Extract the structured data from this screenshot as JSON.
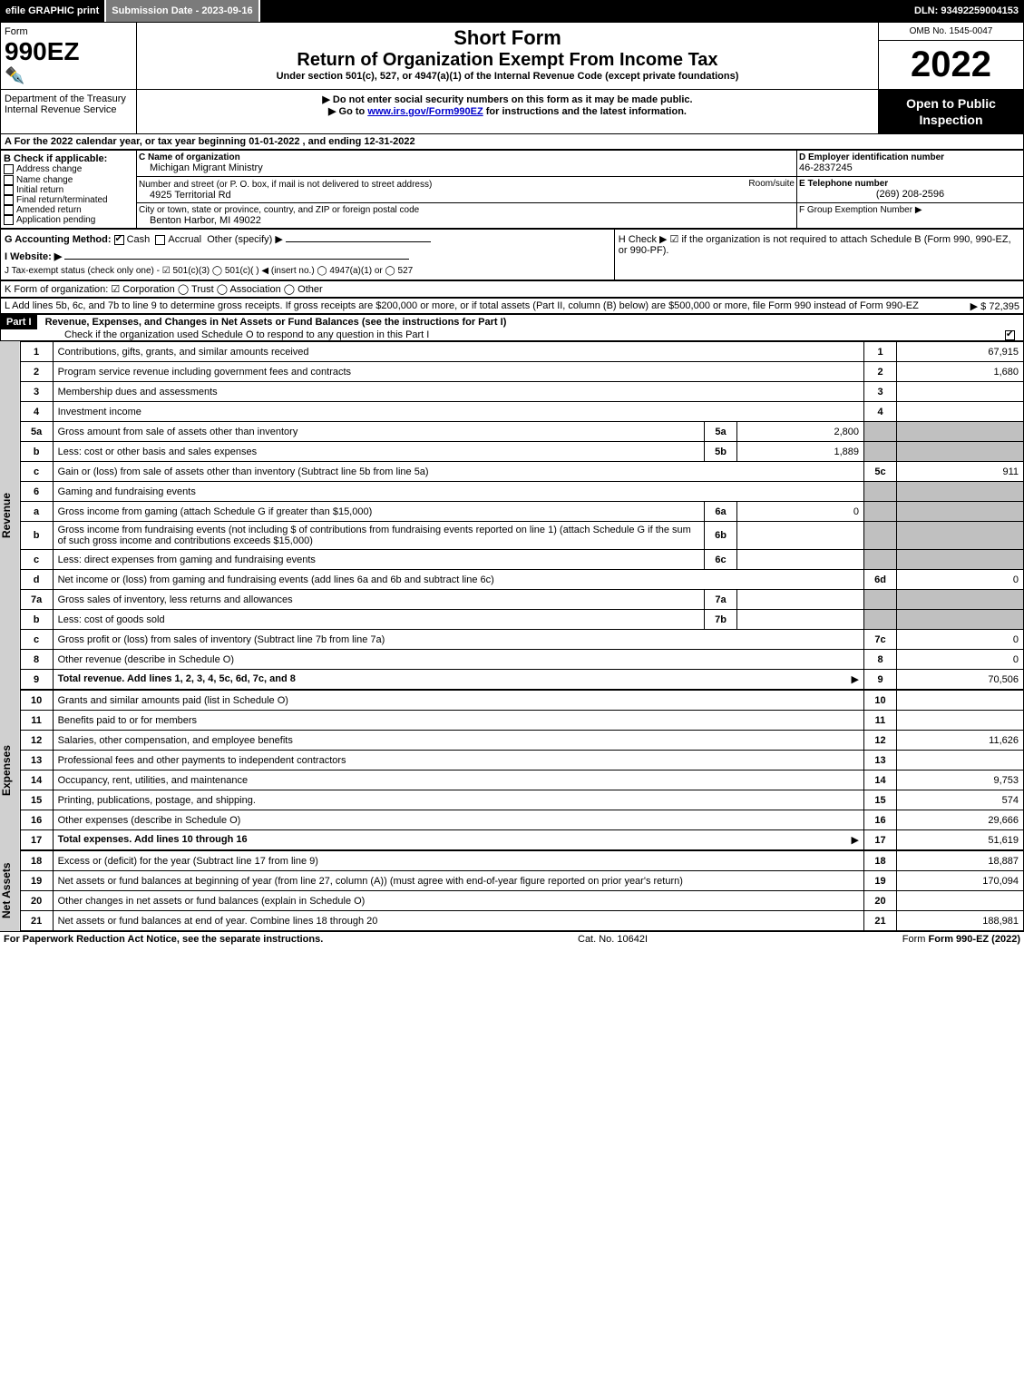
{
  "topbar": {
    "efile": "efile GRAPHIC print",
    "submission_label": "Submission Date - 2023-09-16",
    "dln_label": "DLN: 93492259004153"
  },
  "header": {
    "form_word": "Form",
    "form_number": "990EZ",
    "dept1": "Department of the Treasury",
    "dept2": "Internal Revenue Service",
    "title1": "Short Form",
    "title2": "Return of Organization Exempt From Income Tax",
    "subtitle": "Under section 501(c), 527, or 4947(a)(1) of the Internal Revenue Code (except private foundations)",
    "warn1": "▶ Do not enter social security numbers on this form as it may be made public.",
    "warn2_prefix": "▶ Go to ",
    "warn2_link": "www.irs.gov/Form990EZ",
    "warn2_suffix": " for instructions and the latest information.",
    "omb": "OMB No. 1545-0047",
    "year": "2022",
    "open": "Open to Public Inspection"
  },
  "lineA": "A  For the 2022 calendar year, or tax year beginning 01-01-2022 , and ending 12-31-2022",
  "boxB": {
    "title": "B  Check if applicable:",
    "opts": [
      "Address change",
      "Name change",
      "Initial return",
      "Final return/terminated",
      "Amended return",
      "Application pending"
    ]
  },
  "boxC": {
    "label_name": "C Name of organization",
    "org_name": "Michigan Migrant Ministry",
    "label_street": "Number and street (or P. O. box, if mail is not delivered to street address)",
    "room_label": "Room/suite",
    "street": "4925 Territorial Rd",
    "label_city": "City or town, state or province, country, and ZIP or foreign postal code",
    "city": "Benton Harbor, MI  49022"
  },
  "boxD": {
    "label": "D Employer identification number",
    "value": "46-2837245"
  },
  "boxE": {
    "label": "E Telephone number",
    "value": "(269) 208-2596"
  },
  "boxF": {
    "label": "F Group Exemption Number  ▶",
    "value": ""
  },
  "lineG": {
    "label": "G Accounting Method:",
    "cash": "Cash",
    "accrual": "Accrual",
    "other": "Other (specify) ▶"
  },
  "lineH": "H  Check ▶ ☑ if the organization is not required to attach Schedule B (Form 990, 990-EZ, or 990-PF).",
  "lineI": "I Website: ▶",
  "lineJ": "J Tax-exempt status (check only one) - ☑ 501(c)(3)  ◯ 501(c)(  ) ◀ (insert no.)  ◯ 4947(a)(1) or  ◯ 527",
  "lineK": "K Form of organization:  ☑ Corporation   ◯ Trust   ◯ Association   ◯ Other",
  "lineL": {
    "text": "L Add lines 5b, 6c, and 7b to line 9 to determine gross receipts. If gross receipts are $200,000 or more, or if total assets (Part II, column (B) below) are $500,000 or more, file Form 990 instead of Form 990-EZ",
    "amount": "▶ $ 72,395"
  },
  "partI": {
    "label": "Part I",
    "title": "Revenue, Expenses, and Changes in Net Assets or Fund Balances (see the instructions for Part I)",
    "check_line": "Check if the organization used Schedule O to respond to any question in this Part I",
    "checked": true
  },
  "sections": {
    "revenue": "Revenue",
    "expenses": "Expenses",
    "netassets": "Net Assets"
  },
  "lines": [
    {
      "n": "1",
      "desc": "Contributions, gifts, grants, and similar amounts received",
      "r": "1",
      "amt": "67,915"
    },
    {
      "n": "2",
      "desc": "Program service revenue including government fees and contracts",
      "r": "2",
      "amt": "1,680"
    },
    {
      "n": "3",
      "desc": "Membership dues and assessments",
      "r": "3",
      "amt": ""
    },
    {
      "n": "4",
      "desc": "Investment income",
      "r": "4",
      "amt": ""
    },
    {
      "n": "5a",
      "desc": "Gross amount from sale of assets other than inventory",
      "sub": "5a",
      "subamt": "2,800",
      "shade": true
    },
    {
      "n": "b",
      "desc": "Less: cost or other basis and sales expenses",
      "sub": "5b",
      "subamt": "1,889",
      "shade": true
    },
    {
      "n": "c",
      "desc": "Gain or (loss) from sale of assets other than inventory (Subtract line 5b from line 5a)",
      "r": "5c",
      "amt": "911"
    },
    {
      "n": "6",
      "desc": "Gaming and fundraising events",
      "shade": true
    },
    {
      "n": "a",
      "desc": "Gross income from gaming (attach Schedule G if greater than $15,000)",
      "sub": "6a",
      "subamt": "0",
      "shade": true
    },
    {
      "n": "b",
      "desc": "Gross income from fundraising events (not including $                  of contributions from fundraising events reported on line 1) (attach Schedule G if the sum of such gross income and contributions exceeds $15,000)",
      "sub": "6b",
      "subamt": "",
      "shade": true
    },
    {
      "n": "c",
      "desc": "Less: direct expenses from gaming and fundraising events",
      "sub": "6c",
      "subamt": "",
      "shade": true
    },
    {
      "n": "d",
      "desc": "Net income or (loss) from gaming and fundraising events (add lines 6a and 6b and subtract line 6c)",
      "r": "6d",
      "amt": "0"
    },
    {
      "n": "7a",
      "desc": "Gross sales of inventory, less returns and allowances",
      "sub": "7a",
      "subamt": "",
      "shade": true
    },
    {
      "n": "b",
      "desc": "Less: cost of goods sold",
      "sub": "7b",
      "subamt": "",
      "shade": true
    },
    {
      "n": "c",
      "desc": "Gross profit or (loss) from sales of inventory (Subtract line 7b from line 7a)",
      "r": "7c",
      "amt": "0"
    },
    {
      "n": "8",
      "desc": "Other revenue (describe in Schedule O)",
      "r": "8",
      "amt": "0"
    },
    {
      "n": "9",
      "desc": "Total revenue. Add lines 1, 2, 3, 4, 5c, 6d, 7c, and 8",
      "r": "9",
      "amt": "70,506",
      "bold": true,
      "arrow": true
    }
  ],
  "exp_lines": [
    {
      "n": "10",
      "desc": "Grants and similar amounts paid (list in Schedule O)",
      "r": "10",
      "amt": ""
    },
    {
      "n": "11",
      "desc": "Benefits paid to or for members",
      "r": "11",
      "amt": ""
    },
    {
      "n": "12",
      "desc": "Salaries, other compensation, and employee benefits",
      "r": "12",
      "amt": "11,626"
    },
    {
      "n": "13",
      "desc": "Professional fees and other payments to independent contractors",
      "r": "13",
      "amt": ""
    },
    {
      "n": "14",
      "desc": "Occupancy, rent, utilities, and maintenance",
      "r": "14",
      "amt": "9,753"
    },
    {
      "n": "15",
      "desc": "Printing, publications, postage, and shipping.",
      "r": "15",
      "amt": "574"
    },
    {
      "n": "16",
      "desc": "Other expenses (describe in Schedule O)",
      "r": "16",
      "amt": "29,666"
    },
    {
      "n": "17",
      "desc": "Total expenses. Add lines 10 through 16",
      "r": "17",
      "amt": "51,619",
      "bold": true,
      "arrow": true
    }
  ],
  "na_lines": [
    {
      "n": "18",
      "desc": "Excess or (deficit) for the year (Subtract line 17 from line 9)",
      "r": "18",
      "amt": "18,887"
    },
    {
      "n": "19",
      "desc": "Net assets or fund balances at beginning of year (from line 27, column (A)) (must agree with end-of-year figure reported on prior year's return)",
      "r": "19",
      "amt": "170,094"
    },
    {
      "n": "20",
      "desc": "Other changes in net assets or fund balances (explain in Schedule O)",
      "r": "20",
      "amt": ""
    },
    {
      "n": "21",
      "desc": "Net assets or fund balances at end of year. Combine lines 18 through 20",
      "r": "21",
      "amt": "188,981"
    }
  ],
  "footer": {
    "left": "For Paperwork Reduction Act Notice, see the separate instructions.",
    "mid": "Cat. No. 10642I",
    "right": "Form 990-EZ (2022)"
  }
}
